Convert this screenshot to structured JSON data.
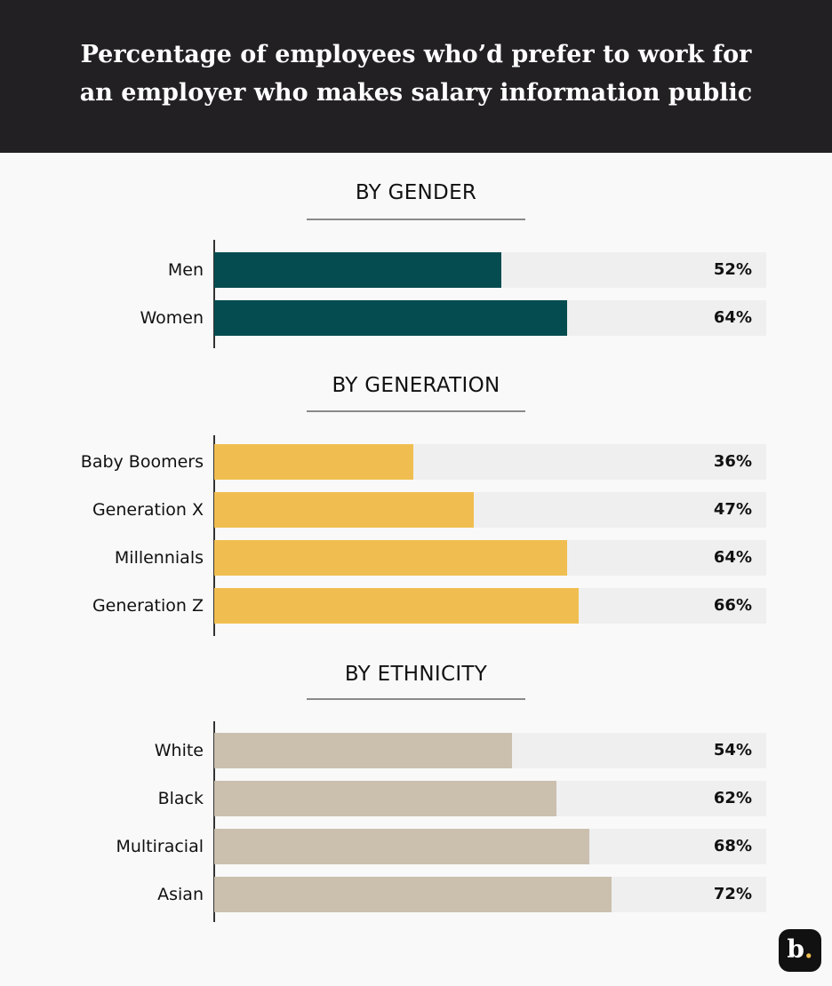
{
  "chart_data": {
    "type": "bar",
    "orientation": "horizontal",
    "title": "Percentage of employees who’d prefer to work for an employer who makes salary information public",
    "xlim": [
      0,
      100
    ],
    "unit": "%",
    "groups": [
      {
        "title": "BY GENDER",
        "color": "#054c50",
        "categories": [
          "Men",
          "Women"
        ],
        "values": [
          52,
          64
        ],
        "labels": [
          "52%",
          "64%"
        ]
      },
      {
        "title": "BY GENERATION",
        "color": "#f0be50",
        "categories": [
          "Baby Boomers",
          "Generation X",
          "Millennials",
          "Generation Z"
        ],
        "values": [
          36,
          47,
          64,
          66
        ],
        "labels": [
          "36%",
          "47%",
          "64%",
          "66%"
        ]
      },
      {
        "title": "BY ETHNICITY",
        "color": "#cbbfae",
        "categories": [
          "White",
          "Black",
          "Multiracial",
          "Asian"
        ],
        "values": [
          54,
          62,
          68,
          72
        ],
        "labels": [
          "54%",
          "62%",
          "68%",
          "72%"
        ]
      }
    ],
    "track_color": "#efefef"
  },
  "header": {
    "title_line1": "Percentage of employees who’d prefer to work for",
    "title_line2": "an employer who makes salary information public",
    "background": "#222023"
  },
  "logo": {
    "letter": "b",
    "dot": "."
  }
}
